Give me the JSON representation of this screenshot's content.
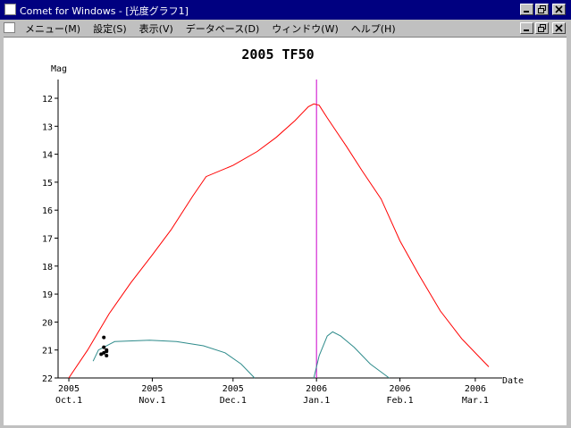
{
  "window": {
    "title": "Comet for Windows - [光度グラフ1]"
  },
  "menu": {
    "items": [
      "メニュー(M)",
      "設定(S)",
      "表示(V)",
      "データベース(D)",
      "ウィンドウ(W)",
      "ヘルプ(H)"
    ]
  },
  "chart_data": {
    "type": "line",
    "title": "2005 TF50",
    "ylabel": "Mag",
    "xlabel": "Date",
    "y_ticks": [
      "12",
      "13",
      "14",
      "15",
      "16",
      "17",
      "18",
      "19",
      "20",
      "21",
      "22"
    ],
    "ylim": [
      11.5,
      22
    ],
    "x_ticks": [
      {
        "year": "2005",
        "month": "Oct.1"
      },
      {
        "year": "2005",
        "month": "Nov.1"
      },
      {
        "year": "2005",
        "month": "Dec.1"
      },
      {
        "year": "2006",
        "month": "Jan.1"
      },
      {
        "year": "2006",
        "month": "Feb.1"
      },
      {
        "year": "2006",
        "month": "Mar.1"
      }
    ],
    "x_range_dates": [
      "2005-09-27",
      "2006-03-09"
    ],
    "current_date": "2006-01-01",
    "colors": {
      "magnitude": "#ff0000",
      "altitude": "#2e8b8b",
      "marker": "#cc00cc",
      "observations": "#000000"
    },
    "series": [
      {
        "key": "magnitude",
        "points": [
          [
            "2005-10-01",
            22.0
          ],
          [
            "2005-10-08",
            21.0
          ],
          [
            "2005-10-16",
            19.7
          ],
          [
            "2005-10-24",
            18.6
          ],
          [
            "2005-11-01",
            17.6
          ],
          [
            "2005-11-08",
            16.7
          ],
          [
            "2005-11-16",
            15.5
          ],
          [
            "2005-11-21",
            14.8
          ],
          [
            "2005-12-01",
            14.4
          ],
          [
            "2005-12-10",
            13.9
          ],
          [
            "2005-12-17",
            13.4
          ],
          [
            "2005-12-24",
            12.8
          ],
          [
            "2005-12-29",
            12.3
          ],
          [
            "2005-12-31",
            12.2
          ],
          [
            "2006-01-02",
            12.25
          ],
          [
            "2006-01-05",
            12.7
          ],
          [
            "2006-01-12",
            13.7
          ],
          [
            "2006-01-18",
            14.6
          ],
          [
            "2006-01-25",
            15.6
          ],
          [
            "2006-02-01",
            17.1
          ],
          [
            "2006-02-08",
            18.3
          ],
          [
            "2006-02-16",
            19.6
          ],
          [
            "2006-02-24",
            20.6
          ],
          [
            "2006-03-03",
            21.3
          ],
          [
            "2006-03-06",
            21.6
          ]
        ]
      },
      {
        "key": "altitude_segment_1",
        "points": [
          [
            "2005-10-10",
            21.4
          ],
          [
            "2005-10-12",
            21.0
          ],
          [
            "2005-10-18",
            20.7
          ],
          [
            "2005-10-31",
            20.65
          ],
          [
            "2005-11-10",
            20.7
          ],
          [
            "2005-11-20",
            20.85
          ],
          [
            "2005-11-28",
            21.1
          ],
          [
            "2005-12-04",
            21.5
          ],
          [
            "2005-12-09",
            22.0
          ]
        ]
      },
      {
        "key": "altitude_segment_2",
        "points": [
          [
            "2005-12-31",
            22.0
          ],
          [
            "2006-01-02",
            21.2
          ],
          [
            "2006-01-05",
            20.5
          ],
          [
            "2006-01-07",
            20.35
          ],
          [
            "2006-01-10",
            20.5
          ],
          [
            "2006-01-15",
            20.9
          ],
          [
            "2006-01-21",
            21.5
          ],
          [
            "2006-01-28",
            22.0
          ]
        ]
      }
    ],
    "observations": [
      [
        "2005-10-14",
        20.55
      ],
      [
        "2005-10-15",
        21.0
      ],
      [
        "2005-10-14",
        21.1
      ],
      [
        "2005-10-15",
        21.2
      ],
      [
        "2005-10-13",
        21.15
      ],
      [
        "2005-10-15",
        21.05
      ],
      [
        "2005-10-14",
        20.9
      ]
    ]
  }
}
